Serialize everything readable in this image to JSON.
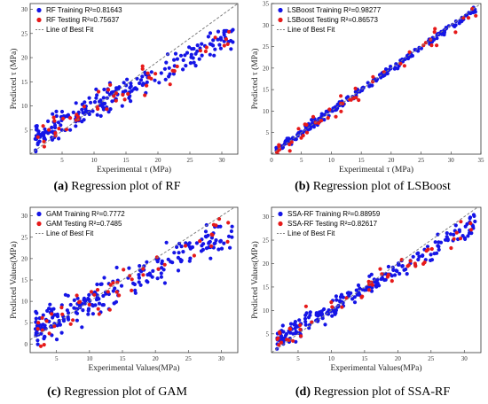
{
  "colors": {
    "training": "#1515e6",
    "testing": "#e61a1a",
    "fit_line": "#808080"
  },
  "chart_data": [
    {
      "type": "scatter",
      "panel_letter": "(a)",
      "caption": "Regression plot of RF",
      "xlabel": "Experimental τ (MPa)",
      "ylabel": "Predicted τ (MPa)",
      "xlim": [
        0,
        32.5
      ],
      "ylim": [
        0,
        31.2
      ],
      "xticks": [
        5,
        10,
        15,
        20,
        25,
        30
      ],
      "yticks": [
        5,
        10,
        15,
        20,
        25,
        30
      ],
      "grid": false,
      "legend_position": "top-left",
      "series": [
        {
          "name": "RF Training R²=0.81643",
          "role": "training",
          "count": 230,
          "slope": 0.7,
          "intercept": 2.8,
          "noise": 1.9
        },
        {
          "name": "RF Testing R²=0.75637",
          "role": "testing",
          "count": 50,
          "slope": 0.7,
          "intercept": 2.8,
          "noise": 2.2
        }
      ],
      "fit_label": "Line of Best Fit",
      "fit_line": [
        [
          0,
          0
        ],
        [
          32.5,
          31.2
        ]
      ]
    },
    {
      "type": "scatter",
      "panel_letter": "(b)",
      "caption": "Regression plot of LSBoost",
      "xlabel": "Experimental τ (MPa)",
      "ylabel": "Predicted τ (MPa)",
      "xlim": [
        0,
        35
      ],
      "ylim": [
        0,
        35
      ],
      "xticks": [
        0,
        5,
        10,
        15,
        20,
        25,
        30,
        35
      ],
      "yticks": [
        5,
        10,
        15,
        20,
        25,
        30,
        35
      ],
      "grid": false,
      "legend_position": "top-left",
      "series": [
        {
          "name": "LSBoost Training R²=0.98277",
          "role": "training",
          "count": 230,
          "slope": 0.98,
          "intercept": 0.2,
          "noise": 0.6
        },
        {
          "name": "LSBoost Testing R²=0.86573",
          "role": "testing",
          "count": 50,
          "slope": 0.98,
          "intercept": 0.2,
          "noise": 1.6
        }
      ],
      "fit_label": "Line of Best Fit",
      "fit_line": [
        [
          0,
          0
        ],
        [
          35,
          35
        ]
      ]
    },
    {
      "type": "scatter",
      "panel_letter": "(c)",
      "caption": "Regression plot of GAM",
      "xlabel": "Experimental Values(MPa)",
      "ylabel": "Predicted Values(MPa)",
      "xlim": [
        1,
        32.5
      ],
      "ylim": [
        -2,
        32
      ],
      "xticks": [
        5,
        10,
        15,
        20,
        25,
        30
      ],
      "yticks": [
        0,
        5,
        10,
        15,
        20,
        25,
        30
      ],
      "grid": false,
      "legend_position": "top-left",
      "series": [
        {
          "name": "GAM Training R²=0.7772",
          "role": "training",
          "count": 230,
          "slope": 0.78,
          "intercept": 2.0,
          "noise": 2.6
        },
        {
          "name": "GAM Testing R²=0.7485",
          "role": "testing",
          "count": 50,
          "slope": 0.78,
          "intercept": 2.0,
          "noise": 3.0
        }
      ],
      "fit_label": "Line of Best Fit",
      "fit_line": [
        [
          1,
          1
        ],
        [
          32,
          32
        ]
      ]
    },
    {
      "type": "scatter",
      "panel_letter": "(d)",
      "caption": "Regression plot of SSA-RF",
      "xlabel": "Experimental Values(MPa)",
      "ylabel": "Predicted Values(MPa)",
      "xlim": [
        1,
        32.5
      ],
      "ylim": [
        1,
        32
      ],
      "xticks": [
        5,
        10,
        15,
        20,
        25,
        30
      ],
      "yticks": [
        5,
        10,
        15,
        20,
        25,
        30
      ],
      "grid": false,
      "legend_position": "top-left",
      "series": [
        {
          "name": "SSA-RF Training R²=0.88959",
          "role": "training",
          "count": 230,
          "slope": 0.84,
          "intercept": 2.0,
          "noise": 1.5
        },
        {
          "name": "SSA-RF Testing R²=0.82617",
          "role": "testing",
          "count": 50,
          "slope": 0.84,
          "intercept": 2.0,
          "noise": 1.9
        }
      ],
      "fit_label": "Line of Best Fit",
      "fit_line": [
        [
          1,
          1
        ],
        [
          32,
          32
        ]
      ]
    }
  ]
}
